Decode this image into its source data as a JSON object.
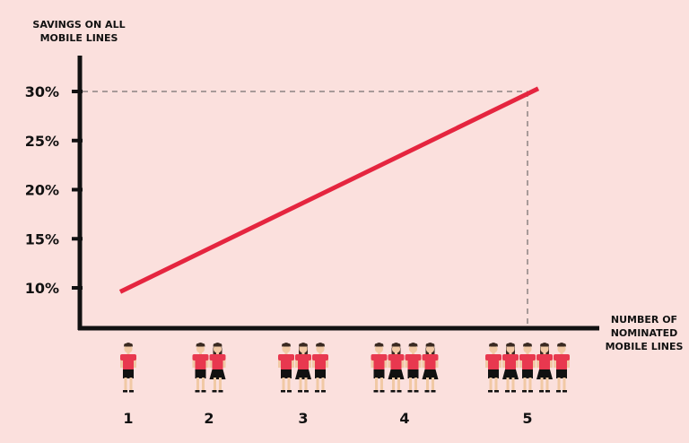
{
  "chart_data": {
    "type": "line",
    "ylabel": [
      "SAVINGS ON ALL",
      "MOBILE LINES"
    ],
    "xlabel": [
      "NUMBER OF",
      "NOMINATED",
      "MOBILE LINES"
    ],
    "y_ticks": [
      "10%",
      "15%",
      "20%",
      "25%",
      "30%"
    ],
    "y_tick_values": [
      10,
      15,
      20,
      25,
      30
    ],
    "categories": [
      "1",
      "2",
      "3",
      "4",
      "5"
    ],
    "people_per_category": [
      [
        "male"
      ],
      [
        "male",
        "female"
      ],
      [
        "male",
        "female",
        "male"
      ],
      [
        "male",
        "female",
        "male",
        "female"
      ],
      [
        "male",
        "female",
        "male",
        "female",
        "male"
      ]
    ],
    "series": [
      {
        "x": [
          1,
          5
        ],
        "values": [
          9.6,
          30.3
        ]
      }
    ],
    "reference": {
      "x": "5",
      "y": 30,
      "style": "dashed"
    },
    "ylim": [
      9,
      33
    ],
    "grid": false,
    "colors": {
      "background": "#fbe0dd",
      "line": "#e5253f",
      "axis": "#111111",
      "shirt": "#e8384f",
      "skin": "#f1c9a5",
      "hair": "#3a2a22"
    }
  }
}
